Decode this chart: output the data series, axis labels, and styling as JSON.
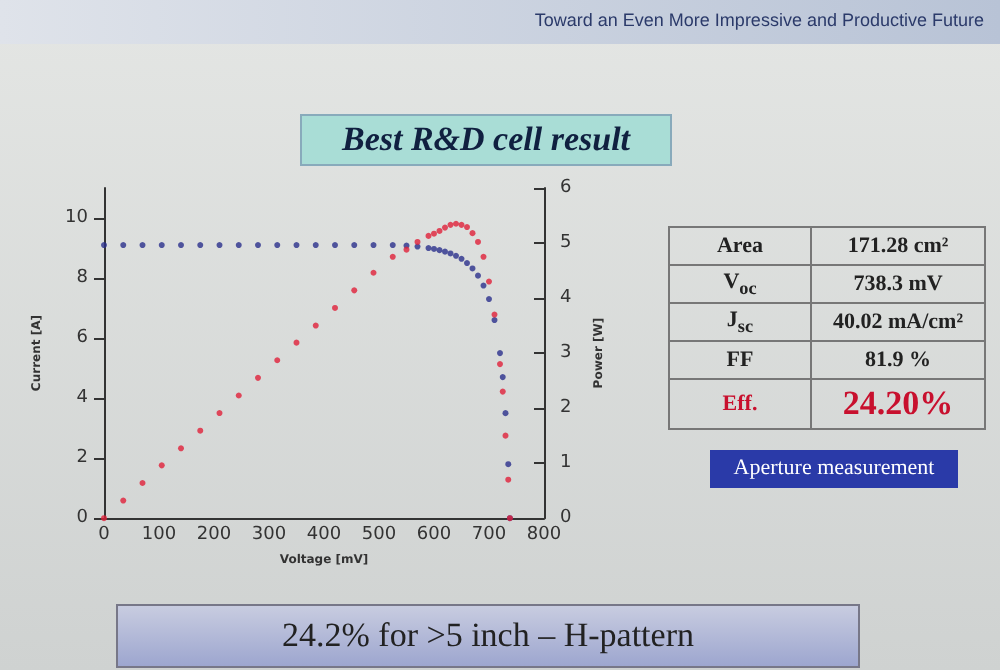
{
  "chart_data": {
    "type": "scatter",
    "title": "Best R&D cell result",
    "xlabel": "Voltage [mV]",
    "ylabel": "Current [A]",
    "y2label": "Power [W]",
    "x": [
      0,
      35,
      70,
      105,
      140,
      175,
      210,
      245,
      280,
      315,
      350,
      385,
      420,
      455,
      490,
      525,
      550,
      570,
      590,
      600,
      610,
      620,
      630,
      640,
      650,
      660,
      670,
      680,
      690,
      700,
      710,
      720,
      725,
      730,
      735,
      738
    ],
    "series": [
      {
        "color": "#2b2f8c",
        "values": [
          9.1,
          9.1,
          9.1,
          9.1,
          9.1,
          9.1,
          9.1,
          9.1,
          9.1,
          9.1,
          9.1,
          9.1,
          9.1,
          9.1,
          9.1,
          9.1,
          9.08,
          9.05,
          9.0,
          8.97,
          8.93,
          8.88,
          8.82,
          8.74,
          8.64,
          8.5,
          8.32,
          8.08,
          7.75,
          7.3,
          6.6,
          5.5,
          4.7,
          3.5,
          1.8,
          0
        ]
      },
      {
        "color": "#e0203a",
        "axis": "y2",
        "values": [
          0,
          0.32,
          0.64,
          0.96,
          1.27,
          1.59,
          1.91,
          2.23,
          2.55,
          2.87,
          3.19,
          3.5,
          3.82,
          4.14,
          4.46,
          4.75,
          4.88,
          5.02,
          5.13,
          5.17,
          5.22,
          5.28,
          5.33,
          5.35,
          5.33,
          5.29,
          5.18,
          5.02,
          4.75,
          4.3,
          3.7,
          2.8,
          2.3,
          1.5,
          0.7,
          0
        ]
      }
    ],
    "xlim": [
      0,
      800
    ],
    "xticks": [
      0,
      100,
      200,
      300,
      400,
      500,
      600,
      700,
      800
    ],
    "ylim": [
      0,
      11
    ],
    "yticks": [
      0,
      2,
      4,
      6,
      8,
      10
    ],
    "y2lim": [
      0,
      6
    ],
    "y2ticks": [
      0,
      1,
      2,
      3,
      4,
      5,
      6
    ],
    "marker": "circle",
    "grid": false,
    "annotations": [
      "Toward an Even More Impressive and Productive Future",
      "Area",
      "171.28 cm²",
      "V$_{oc}$",
      "738.3 mV",
      "J$_{sc}$",
      "40.02 mA/cm²",
      "FF",
      "81.9 %",
      "Eff.",
      "24.20%",
      "Aperture measurement",
      "24.2% for >5 inch – H-pattern"
    ]
  }
}
